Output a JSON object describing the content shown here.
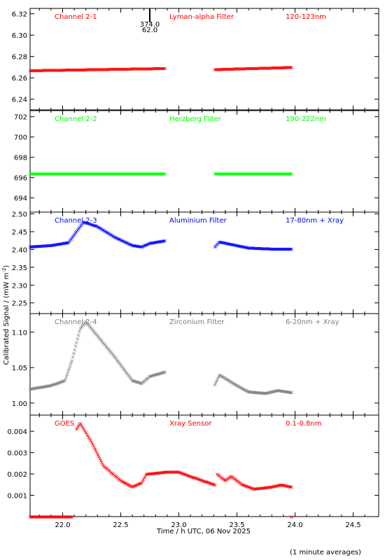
{
  "chart_data": {
    "type": "scatter",
    "xlabel": "Time / h UTC, 06 Nov 2025",
    "ylabel": "Calibrated Signal / (mW m",
    "ylabel_sup": "-2",
    "ylabel_end": ")",
    "footnote": "(1 minute averages)",
    "marker": "×",
    "xlim": [
      21.72,
      24.72
    ],
    "xticks": [
      22.0,
      22.5,
      23.0,
      23.5,
      24.0,
      24.5
    ],
    "xtick_labels": [
      "22.0",
      "23.0",
      "23.5",
      "24.0",
      "24.5"
    ],
    "xtick_labels_all": [
      "22.0",
      "22.5",
      "23.0",
      "23.5",
      "24.0",
      "24.5"
    ],
    "annotation": {
      "x": 22.75,
      "text_top": "374.0",
      "text_bottom": "62.0"
    },
    "panels": [
      {
        "name": "Channel 2-1",
        "filter": "Lyman-alpha Filter",
        "band": "120-123nm",
        "color": "#ff0000",
        "ylim": [
          6.23,
          6.325
        ],
        "yticks": [
          6.24,
          6.26,
          6.28,
          6.3,
          6.32
        ],
        "ytick_labels": [
          "6.24",
          "6.26",
          "6.28",
          "6.30",
          "6.32"
        ],
        "segments": [
          {
            "x_start": 21.72,
            "x_end": 22.88,
            "y": [
              [
                21.72,
                6.267
              ],
              [
                22.3,
                6.268
              ],
              [
                22.88,
                6.269
              ]
            ]
          },
          {
            "x_start": 23.31,
            "x_end": 23.97,
            "y": [
              [
                23.31,
                6.268
              ],
              [
                23.97,
                6.27
              ]
            ]
          }
        ]
      },
      {
        "name": "Channel 2-2",
        "filter": "Herzberg Filter",
        "band": "190-222nm",
        "color": "#00ff00",
        "ylim": [
          692.6,
          702.6
        ],
        "yticks": [
          694,
          696,
          698,
          700,
          702
        ],
        "ytick_labels": [
          "694",
          "696",
          "698",
          "700",
          "702"
        ],
        "segments": [
          {
            "x_start": 21.72,
            "x_end": 22.88,
            "y": [
              [
                21.72,
                696.4
              ],
              [
                22.88,
                696.4
              ]
            ]
          },
          {
            "x_start": 23.31,
            "x_end": 23.97,
            "y": [
              [
                23.31,
                696.4
              ],
              [
                23.97,
                696.4
              ]
            ]
          }
        ]
      },
      {
        "name": "Channel 2-3",
        "filter": "Aluminium Filter",
        "band": "17-80nm + Xray",
        "color": "#0000ff",
        "ylim": [
          2.22,
          2.505
        ],
        "yticks": [
          2.25,
          2.3,
          2.35,
          2.4,
          2.45,
          2.5
        ],
        "ytick_labels": [
          "2.25",
          "2.30",
          "2.35",
          "2.40",
          "2.45",
          "2.50"
        ],
        "segments": [
          {
            "x_start": 21.72,
            "x_end": 22.88,
            "y": [
              [
                21.72,
                2.408
              ],
              [
                21.9,
                2.412
              ],
              [
                22.05,
                2.42
              ],
              [
                22.18,
                2.478
              ],
              [
                22.3,
                2.465
              ],
              [
                22.45,
                2.435
              ],
              [
                22.6,
                2.412
              ],
              [
                22.68,
                2.408
              ],
              [
                22.75,
                2.418
              ],
              [
                22.88,
                2.425
              ]
            ]
          },
          {
            "x_start": 23.31,
            "x_end": 23.97,
            "y": [
              [
                23.31,
                2.408
              ],
              [
                23.35,
                2.422
              ],
              [
                23.45,
                2.415
              ],
              [
                23.6,
                2.405
              ],
              [
                23.8,
                2.402
              ],
              [
                23.97,
                2.402
              ]
            ]
          }
        ]
      },
      {
        "name": "Channel 2-4",
        "filter": "Zirconium Filter",
        "band": "6-20nm + Xray",
        "color": "#808080",
        "ylim": [
          0.983,
          1.126
        ],
        "yticks": [
          1.0,
          1.05,
          1.1
        ],
        "ytick_labels": [
          "1.00",
          "1.05",
          "1.10"
        ],
        "segments": [
          {
            "x_start": 21.72,
            "x_end": 22.88,
            "y": [
              [
                21.72,
                1.02
              ],
              [
                21.9,
                1.025
              ],
              [
                22.02,
                1.032
              ],
              [
                22.08,
                1.06
              ],
              [
                22.15,
                1.105
              ],
              [
                22.2,
                1.115
              ],
              [
                22.3,
                1.095
              ],
              [
                22.45,
                1.065
              ],
              [
                22.6,
                1.032
              ],
              [
                22.68,
                1.028
              ],
              [
                22.75,
                1.038
              ],
              [
                22.88,
                1.044
              ]
            ]
          },
          {
            "x_start": 23.31,
            "x_end": 23.97,
            "y": [
              [
                23.31,
                1.026
              ],
              [
                23.35,
                1.04
              ],
              [
                23.4,
                1.035
              ],
              [
                23.5,
                1.025
              ],
              [
                23.6,
                1.016
              ],
              [
                23.75,
                1.014
              ],
              [
                23.85,
                1.018
              ],
              [
                23.97,
                1.015
              ]
            ]
          }
        ]
      },
      {
        "name": "GOES",
        "filter": "Xray Sensor",
        "band": "0.1-0.8nm",
        "color": "#ff0000",
        "ylim": [
          0.0,
          0.00476
        ],
        "yticks": [
          0.001,
          0.002,
          0.003,
          0.004
        ],
        "ytick_labels": [
          "0.001",
          "0.002",
          "0.003",
          "0.004"
        ],
        "segments": [
          {
            "x_start": 21.72,
            "x_end": 22.08,
            "y": [
              [
                21.72,
                0.0
              ],
              [
                22.08,
                0.0
              ]
            ]
          },
          {
            "x_start": 22.12,
            "x_end": 22.88,
            "y": [
              [
                22.12,
                0.0041
              ],
              [
                22.15,
                0.0044
              ],
              [
                22.25,
                0.0035
              ],
              [
                22.35,
                0.0024
              ],
              [
                22.5,
                0.0017
              ],
              [
                22.6,
                0.0014
              ],
              [
                22.68,
                0.0016
              ],
              [
                22.72,
                0.002
              ],
              [
                22.9,
                0.0021
              ]
            ]
          },
          {
            "x_start": 22.88,
            "x_end": 23.31,
            "y": [
              [
                22.88,
                0.0021
              ],
              [
                23.0,
                0.0021
              ],
              [
                23.15,
                0.0018
              ],
              [
                23.31,
                0.0015
              ]
            ]
          },
          {
            "x_start": 23.33,
            "x_end": 23.97,
            "y": [
              [
                23.33,
                0.002
              ],
              [
                23.4,
                0.0017
              ],
              [
                23.45,
                0.0019
              ],
              [
                23.55,
                0.0015
              ],
              [
                23.65,
                0.0013
              ],
              [
                23.8,
                0.0014
              ],
              [
                23.88,
                0.0015
              ],
              [
                23.97,
                0.0014
              ]
            ]
          },
          {
            "x_start": 23.97,
            "x_end": 23.97,
            "y": [
              [
                23.97,
                0.0
              ],
              [
                23.97,
                0.0
              ]
            ]
          }
        ]
      }
    ]
  }
}
